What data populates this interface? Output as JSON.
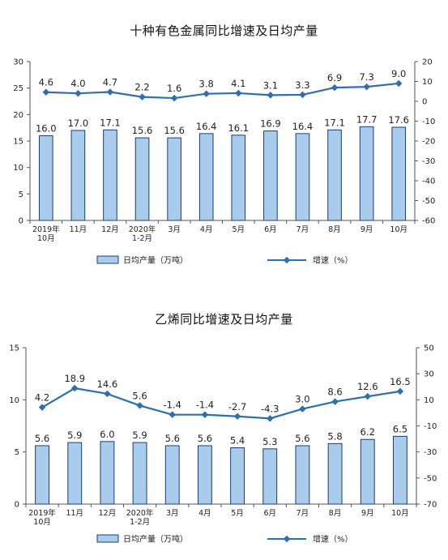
{
  "chart_data": [
    {
      "type": "bar",
      "title": "十种有色金属同比增速及日均产量",
      "categories": [
        [
          "2019年",
          "10月"
        ],
        [
          "11月"
        ],
        [
          "12月"
        ],
        [
          "2020年",
          "1-2月"
        ],
        [
          "3月"
        ],
        [
          "4月"
        ],
        [
          "5月"
        ],
        [
          "6月"
        ],
        [
          "7月"
        ],
        [
          "8月"
        ],
        [
          "9月"
        ],
        [
          "10月"
        ]
      ],
      "series": [
        {
          "name": "日均产量（万吨）",
          "type": "bar",
          "axis": "left",
          "values": [
            16.0,
            17.0,
            17.1,
            15.6,
            15.6,
            16.4,
            16.1,
            16.9,
            16.4,
            17.1,
            17.7,
            17.6
          ],
          "labels": [
            "16.0",
            "17.0",
            "17.1",
            "15.6",
            "15.6",
            "16.4",
            "16.1",
            "16.9",
            "16.4",
            "17.1",
            "17.7",
            "17.6"
          ]
        },
        {
          "name": "增速（%）",
          "type": "line",
          "axis": "right",
          "values": [
            4.6,
            4.0,
            4.7,
            2.2,
            1.6,
            3.8,
            4.1,
            3.1,
            3.3,
            6.9,
            7.3,
            9.0
          ],
          "labels": [
            "4.6",
            "4.0",
            "4.7",
            "2.2",
            "1.6",
            "3.8",
            "4.1",
            "3.1",
            "3.3",
            "6.9",
            "7.3",
            "9.0"
          ]
        }
      ],
      "ylim_left": [
        0,
        30
      ],
      "yticks_left": [
        0,
        5,
        10,
        15,
        20,
        25,
        30
      ],
      "ylim_right": [
        -60,
        20
      ],
      "yticks_right": [
        -60,
        -50,
        -40,
        -30,
        -20,
        -10,
        0,
        10,
        20
      ],
      "legend_position": "bottom",
      "grid": false,
      "colors": {
        "bar_fill": "#a9cbec",
        "bar_stroke": "#1c3f6e",
        "line": "#2e6fad",
        "axis": "#555555"
      }
    },
    {
      "type": "bar",
      "title": "乙烯同比增速及日均产量",
      "categories": [
        [
          "2019年",
          "10月"
        ],
        [
          "11月"
        ],
        [
          "12月"
        ],
        [
          "2020年",
          "1-2月"
        ],
        [
          "3月"
        ],
        [
          "4月"
        ],
        [
          "5月"
        ],
        [
          "6月"
        ],
        [
          "7月"
        ],
        [
          "8月"
        ],
        [
          "9月"
        ],
        [
          "10月"
        ]
      ],
      "series": [
        {
          "name": "日均产量（万吨）",
          "type": "bar",
          "axis": "left",
          "values": [
            5.6,
            5.9,
            6.0,
            5.9,
            5.6,
            5.6,
            5.4,
            5.3,
            5.6,
            5.8,
            6.2,
            6.5
          ],
          "labels": [
            "5.6",
            "5.9",
            "6.0",
            "5.9",
            "5.6",
            "5.6",
            "5.4",
            "5.3",
            "5.6",
            "5.8",
            "6.2",
            "6.5"
          ]
        },
        {
          "name": "增速（%）",
          "type": "line",
          "axis": "right",
          "values": [
            4.2,
            18.9,
            14.6,
            5.6,
            -1.4,
            -1.4,
            -2.7,
            -4.3,
            3.0,
            8.6,
            12.6,
            16.5
          ],
          "labels": [
            "4.2",
            "18.9",
            "14.6",
            "5.6",
            "-1.4",
            "-1.4",
            "-2.7",
            "-4.3",
            "3.0",
            "8.6",
            "12.6",
            "16.5"
          ]
        }
      ],
      "ylim_left": [
        0,
        15
      ],
      "yticks_left": [
        0,
        5,
        10,
        15
      ],
      "ylim_right": [
        -70,
        50
      ],
      "yticks_right": [
        -70,
        -50,
        -30,
        -10,
        10,
        30,
        50
      ],
      "legend_position": "bottom",
      "grid": false,
      "colors": {
        "bar_fill": "#a9cbec",
        "bar_stroke": "#1c3f6e",
        "line": "#2e6fad",
        "axis": "#555555"
      }
    }
  ]
}
